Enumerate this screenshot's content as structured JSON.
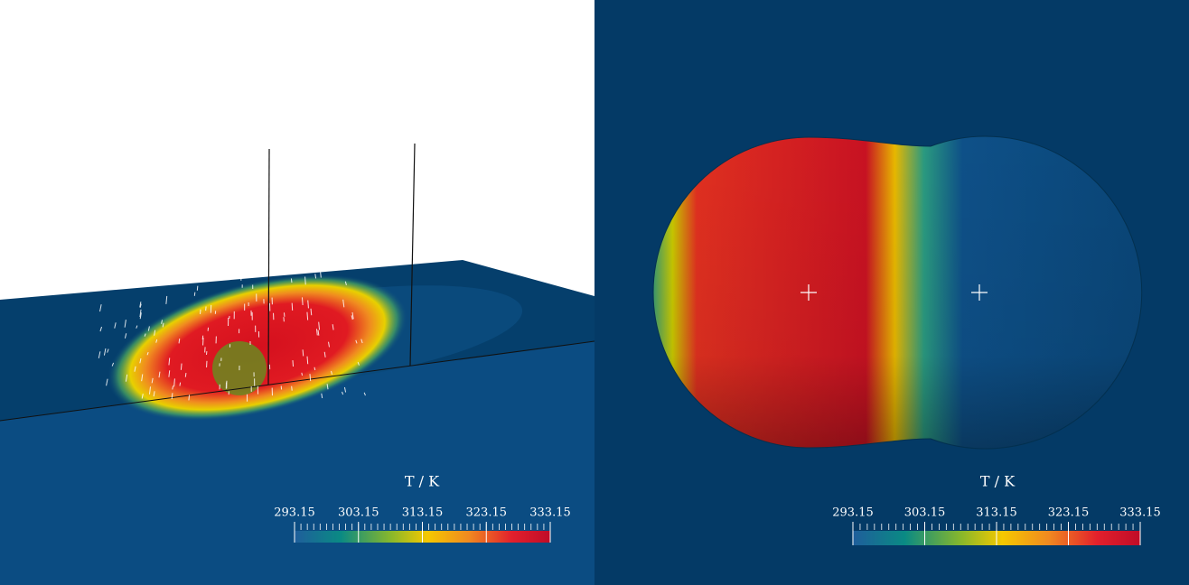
{
  "panels": [
    {
      "colorbar": {
        "title": "T / K",
        "ticks": [
          293.15,
          303.15,
          313.15,
          323.15,
          333.15
        ]
      }
    },
    {
      "colorbar": {
        "title": "T / K",
        "ticks": [
          293.15,
          303.15,
          313.15,
          323.15,
          333.15
        ]
      }
    }
  ]
}
